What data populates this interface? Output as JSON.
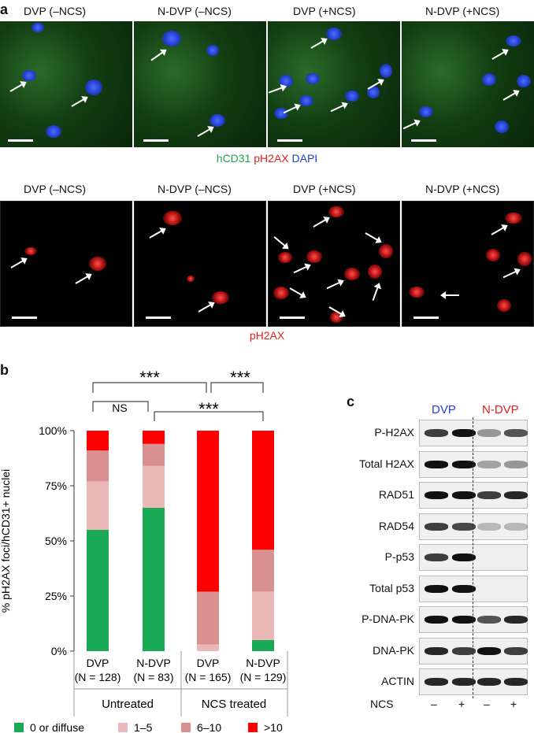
{
  "panel_a": {
    "letter": "a",
    "top_titles": [
      "DVP (–NCS)",
      "N-DVP (–NCS)",
      "DVP (+NCS)",
      "N-DVP (+NCS)"
    ],
    "stain_legend": {
      "hcd31": "hCD31",
      "ph2ax": "pH2AX",
      "dapi": "DAPI"
    },
    "bottom_titles": [
      "DVP (–NCS)",
      "N-DVP (–NCS)",
      "DVP (+NCS)",
      "N-DVP (+NCS)"
    ],
    "bottom_caption": "pH2AX",
    "colors": {
      "hcd31": "#22a64a",
      "ph2ax": "#e0201a",
      "dapi": "#1f3fcf"
    }
  },
  "panel_b": {
    "letter": "b",
    "significance": {
      "top_left": "***",
      "top_right": "***",
      "ns": "NS",
      "middle": "***"
    },
    "categories": [
      {
        "name": "DVP",
        "n": "(N = 128)"
      },
      {
        "name": "N-DVP",
        "n": "(N = 83)"
      },
      {
        "name": "DVP",
        "n": "(N = 165)"
      },
      {
        "name": "N-DVP",
        "n": "(N = 129)"
      }
    ],
    "groups": [
      "Untreated",
      "NCS treated"
    ],
    "legend": [
      "0 or diffuse",
      "1–5",
      "6–10",
      ">10"
    ]
  },
  "chart_data": {
    "type": "bar",
    "stacked": true,
    "ylabel": "% pH2AX foci/hCD31+ nuclei",
    "yticks": [
      "0%",
      "25%",
      "50%",
      "75%",
      "100%"
    ],
    "ylim": [
      0,
      100
    ],
    "categories": [
      "DVP (N = 128)",
      "N-DVP (N = 83)",
      "DVP (N = 165)",
      "N-DVP (N = 129)"
    ],
    "series": [
      {
        "name": "0 or diffuse",
        "color": "#1aaa55",
        "values": [
          55,
          65,
          0,
          5
        ]
      },
      {
        "name": "1–5",
        "color": "#ebb8b8",
        "values": [
          22,
          19,
          3,
          22
        ]
      },
      {
        "name": "6–10",
        "color": "#d99090",
        "values": [
          14,
          10,
          24,
          19
        ]
      },
      {
        "name": ">10",
        "color": "#ff0000",
        "values": [
          9,
          6,
          73,
          54
        ]
      }
    ]
  },
  "panel_c": {
    "letter": "c",
    "group_labels": {
      "dvp": "DVP",
      "ndvp": "N-DVP"
    },
    "group_colors": {
      "dvp": "#2040d0",
      "ndvp": "#e02020"
    },
    "rows": [
      "P-H2AX",
      "Total H2AX",
      "RAD51",
      "RAD54",
      "P-p53",
      "Total p53",
      "P-DNA-PK",
      "DNA-PK",
      "ACTIN"
    ],
    "ncs_label": "NCS",
    "ncs_signs": [
      "–",
      "+",
      "–",
      "+"
    ]
  }
}
